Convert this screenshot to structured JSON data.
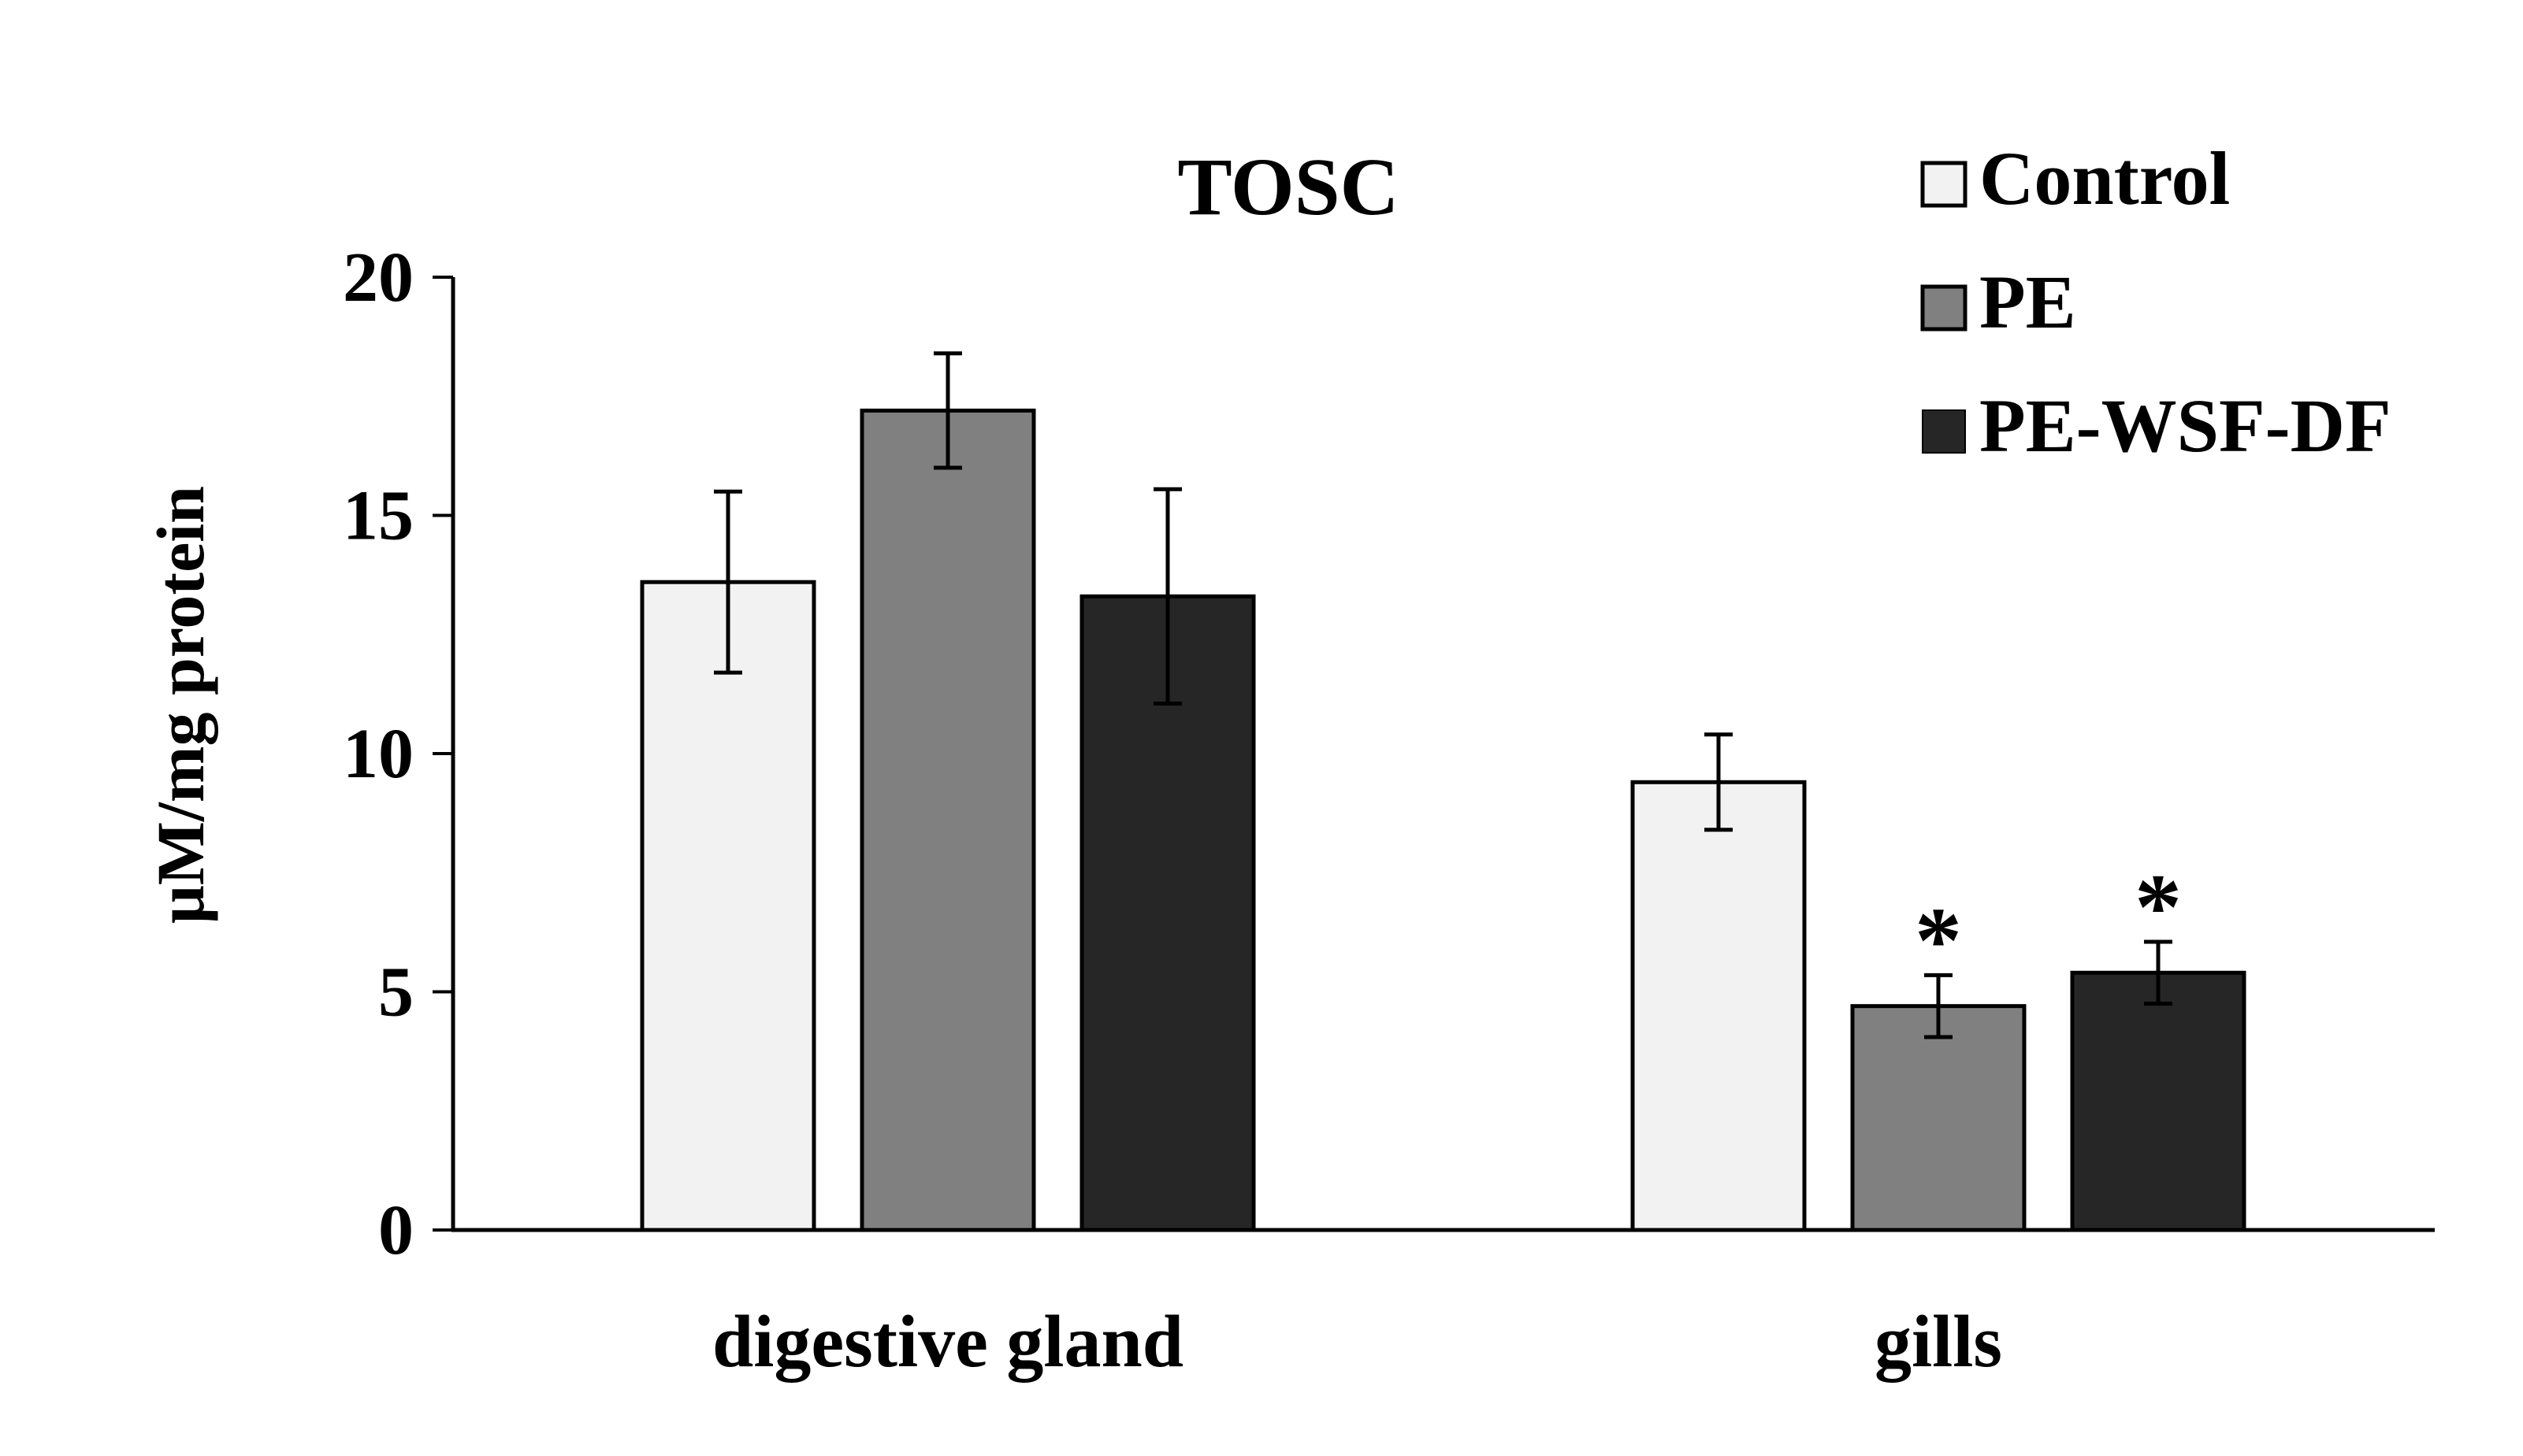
{
  "chart_data": {
    "type": "bar",
    "title": "TOSC",
    "xlabel": "",
    "ylabel": "μM/mg protein",
    "ylim": [
      0,
      20
    ],
    "yticks": [
      0,
      5,
      10,
      15,
      20
    ],
    "categories": [
      "digestive gland",
      "gills"
    ],
    "grid": false,
    "legend_position": "top-right",
    "series": [
      {
        "name": "Control",
        "color": "#f2f2f2",
        "values": [
          13.6,
          9.4
        ],
        "errors": [
          1.9,
          1.0
        ],
        "annotations": [
          "",
          ""
        ]
      },
      {
        "name": "PE",
        "color": "#808080",
        "values": [
          17.2,
          4.7
        ],
        "errors": [
          1.2,
          0.65
        ],
        "annotations": [
          "",
          "*"
        ]
      },
      {
        "name": "PE-WSF-DF",
        "color": "#262626",
        "values": [
          13.3,
          5.4
        ],
        "errors": [
          2.25,
          0.65
        ],
        "annotations": [
          "",
          "*"
        ]
      }
    ]
  }
}
